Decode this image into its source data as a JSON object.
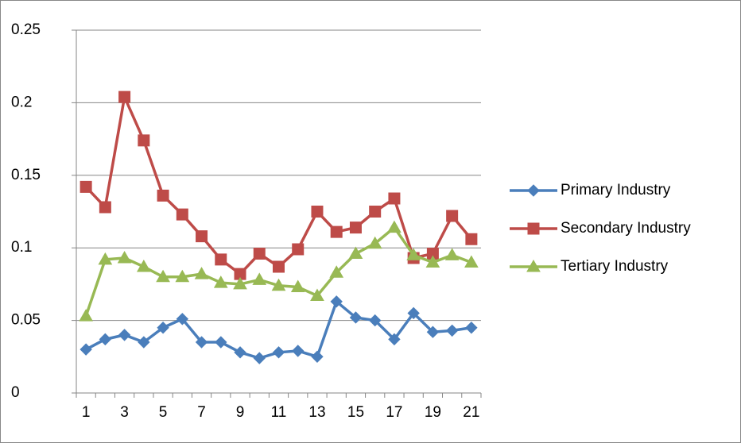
{
  "chart_data": {
    "type": "line",
    "categories": [
      1,
      null,
      3,
      null,
      5,
      null,
      7,
      null,
      9,
      null,
      11,
      null,
      13,
      null,
      15,
      null,
      17,
      null,
      19,
      null,
      21
    ],
    "series": [
      {
        "name": "Primary Industry",
        "color": "#4a7ebb",
        "marker": "diamond",
        "values": [
          0.03,
          0.037,
          0.04,
          0.035,
          0.045,
          0.051,
          0.035,
          0.035,
          0.028,
          0.024,
          0.028,
          0.029,
          0.025,
          0.063,
          0.052,
          0.05,
          0.037,
          0.055,
          0.042,
          0.043,
          0.045
        ]
      },
      {
        "name": "Secondary Industry",
        "color": "#be4b48",
        "marker": "square",
        "values": [
          0.142,
          0.128,
          0.204,
          0.174,
          0.136,
          0.123,
          0.108,
          0.092,
          0.082,
          0.096,
          0.087,
          0.099,
          0.125,
          0.111,
          0.114,
          0.125,
          0.134,
          0.093,
          0.096,
          0.122,
          0.106
        ]
      },
      {
        "name": "Tertiary Industry",
        "color": "#98b954",
        "marker": "triangle",
        "values": [
          0.053,
          0.092,
          0.093,
          0.087,
          0.08,
          0.08,
          0.082,
          0.076,
          0.075,
          0.078,
          0.074,
          0.073,
          0.067,
          0.083,
          0.096,
          0.103,
          0.114,
          0.095,
          0.09,
          0.095,
          0.09
        ]
      }
    ],
    "ylim": [
      0,
      0.25
    ],
    "yticks": [
      0,
      0.05,
      0.1,
      0.15,
      0.2,
      0.25
    ],
    "grid": true,
    "legend": "right"
  }
}
